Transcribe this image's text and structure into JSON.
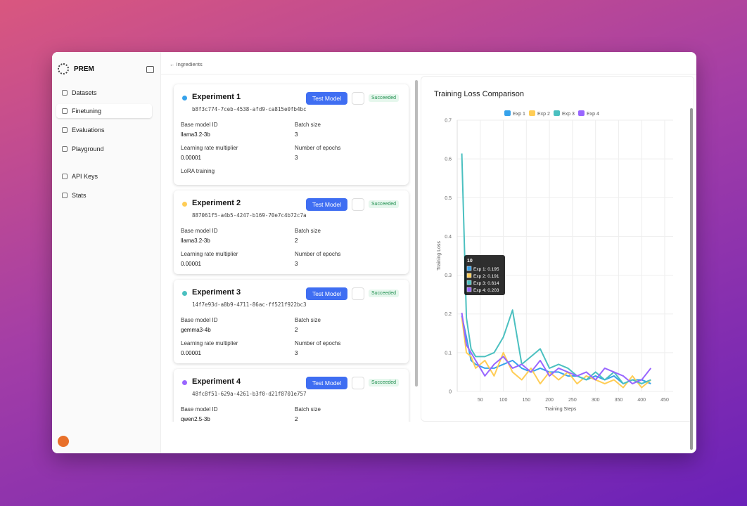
{
  "sidebar": {
    "brand": "PREM",
    "nav": [
      "Datasets",
      "Finetuning",
      "Evaluations",
      "Playground",
      "API Keys",
      "Stats"
    ]
  },
  "breadcrumb": "Ingredients",
  "experiments": [
    {
      "name": "Experiment 1",
      "id": "b8f3c774-7ceb-4538-afd9-ca815e0fb4bc",
      "button": "Test Model",
      "status": "Succeeded",
      "fields": [
        {
          "label": "Base model ID",
          "value": "llama3.2-3b"
        },
        {
          "label": "Batch size",
          "value": "3"
        },
        {
          "label": "Learning rate multiplier",
          "value": "0.00001"
        },
        {
          "label": "Number of epochs",
          "value": "3"
        },
        {
          "label": "LoRA training"
        }
      ]
    },
    {
      "name": "Experiment 2",
      "id": "887061f5-a4b5-4247-b169-70e7c4b72c7a",
      "button": "Test Model",
      "status": "Succeeded",
      "fields": [
        {
          "label": "Base model ID",
          "value": "llama3.2-3b"
        },
        {
          "label": "Batch size",
          "value": "2"
        },
        {
          "label": "Learning rate multiplier",
          "value": "0.00001"
        },
        {
          "label": "Number of epochs",
          "value": "3"
        }
      ]
    },
    {
      "name": "Experiment 3",
      "id": "14f7e93d-a8b9-4711-86ac-ff521f922bc3",
      "button": "Test Model",
      "status": "Succeeded",
      "fields": [
        {
          "label": "Base model ID",
          "value": "gemma3-4b"
        },
        {
          "label": "Batch size",
          "value": "2"
        },
        {
          "label": "Learning rate multiplier",
          "value": "0.00001"
        },
        {
          "label": "Number of epochs",
          "value": "3"
        }
      ]
    },
    {
      "name": "Experiment 4",
      "id": "48fc8f51-629a-4261-b3f0-d21f8701e757",
      "button": "Test Model",
      "status": "Succeeded",
      "fields": [
        {
          "label": "Base model ID",
          "value": "qwen2.5-3b"
        },
        {
          "label": "Batch size",
          "value": "2"
        }
      ]
    }
  ],
  "chart_data": {
    "type": "line",
    "title": "Training Loss Comparison",
    "x_label": "Training Steps",
    "y_label": "Training Loss",
    "x": [
      10,
      20,
      30,
      40,
      60,
      80,
      100,
      120,
      140,
      160,
      180,
      200,
      220,
      240,
      260,
      280,
      300,
      320,
      340,
      360,
      380,
      400,
      420
    ],
    "series": [
      {
        "name": "Exp 1",
        "color": "#36a2eb",
        "values": [
          0.195,
          0.14,
          0.08,
          0.07,
          0.06,
          0.06,
          0.07,
          0.08,
          0.06,
          0.05,
          0.06,
          0.05,
          0.05,
          0.04,
          0.04,
          0.03,
          0.04,
          0.03,
          0.04,
          0.02,
          0.03,
          0.03,
          0.02
        ]
      },
      {
        "name": "Exp 2",
        "color": "#ffcd56",
        "values": [
          0.191,
          0.1,
          0.09,
          0.06,
          0.08,
          0.04,
          0.1,
          0.05,
          0.03,
          0.06,
          0.02,
          0.05,
          0.03,
          0.05,
          0.02,
          0.04,
          0.03,
          0.02,
          0.03,
          0.01,
          0.04,
          0.01,
          0.03
        ]
      },
      {
        "name": "Exp 3",
        "color": "#4bc0c0",
        "values": [
          0.614,
          0.19,
          0.11,
          0.09,
          0.09,
          0.1,
          0.14,
          0.21,
          0.07,
          0.09,
          0.11,
          0.06,
          0.07,
          0.06,
          0.04,
          0.03,
          0.05,
          0.03,
          0.05,
          0.02,
          0.03,
          0.02,
          0.03
        ]
      },
      {
        "name": "Exp 4",
        "color": "#9966ff",
        "values": [
          0.203,
          0.12,
          0.1,
          0.08,
          0.04,
          0.07,
          0.09,
          0.06,
          0.07,
          0.05,
          0.08,
          0.04,
          0.06,
          0.05,
          0.04,
          0.05,
          0.03,
          0.06,
          0.05,
          0.04,
          0.02,
          0.03,
          0.06
        ]
      }
    ],
    "xlim": [
      0,
      450
    ],
    "xticks": [
      50,
      100,
      150,
      200,
      250,
      300,
      350,
      400,
      450
    ],
    "ylim": [
      0,
      0.7
    ],
    "yticks": [
      0,
      0.1,
      0.2,
      0.3,
      0.4,
      0.5,
      0.6,
      0.7
    ],
    "grid": true,
    "legend": "top"
  },
  "tooltip": {
    "title": "10",
    "items": [
      "Exp 1: 0.195",
      "Exp 2: 0.191",
      "Exp 3: 0.614",
      "Exp 4: 0.203"
    ]
  }
}
